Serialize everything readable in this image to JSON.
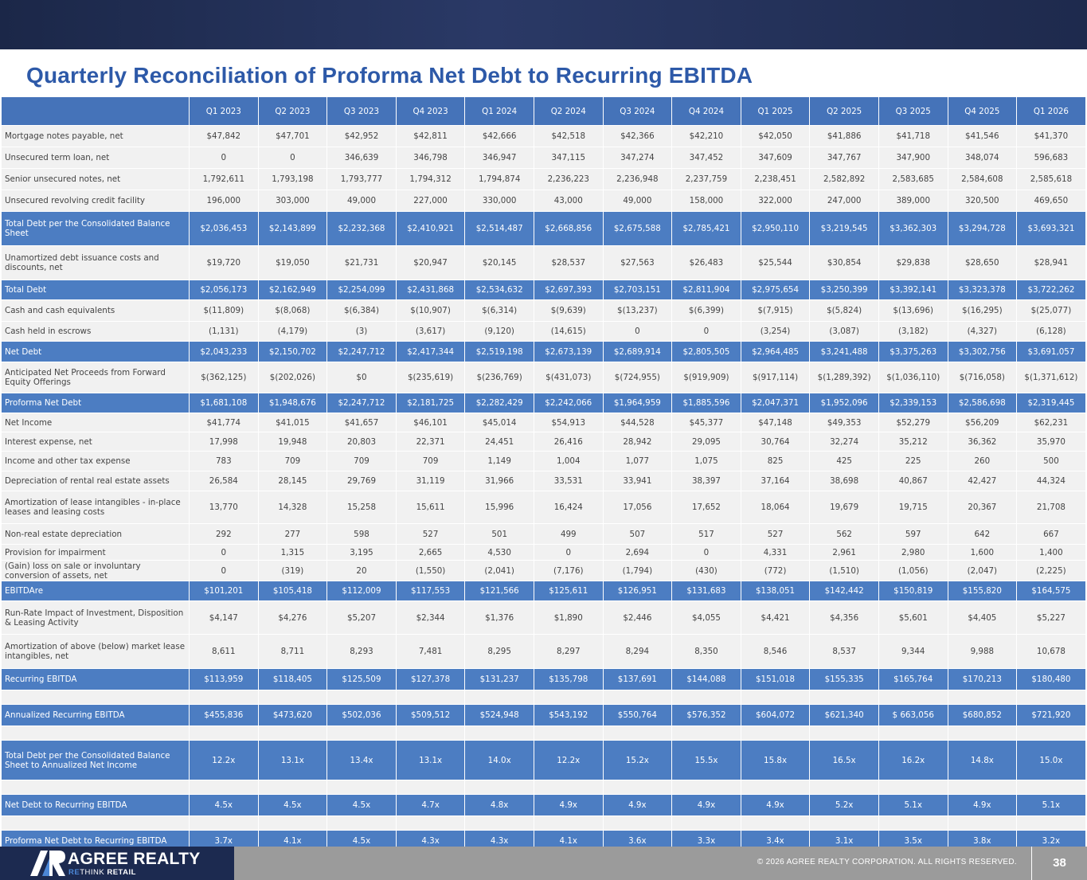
{
  "page": {
    "title": "Quarterly Reconciliation of Proforma Net Debt to Recurring EBITDA"
  },
  "table": {
    "corner_label": "",
    "quarters": [
      "Q1 2023",
      "Q2 2023",
      "Q3 2023",
      "Q4 2023",
      "Q1 2024",
      "Q2 2024",
      "Q3 2024",
      "Q4 2024",
      "Q1 2025",
      "Q2 2025",
      "Q3 2025",
      "Q4 2025",
      "Q1 2026"
    ],
    "rows": [
      {
        "kind": "normal",
        "label": "Mortgage notes payable, net",
        "values": [
          "$47,842",
          "$47,701",
          "$42,952",
          "$42,811",
          "$42,666",
          "$42,518",
          "$42,366",
          "$42,210",
          "$42,050",
          "$41,886",
          "$41,718",
          "$41,546",
          "$41,370"
        ]
      },
      {
        "kind": "normal",
        "label": "Unsecured term loan, net",
        "values": [
          "0",
          "0",
          "346,639",
          "346,798",
          "346,947",
          "347,115",
          "347,274",
          "347,452",
          "347,609",
          "347,767",
          "347,900",
          "348,074",
          "596,683"
        ]
      },
      {
        "kind": "normal",
        "label": "Senior unsecured notes, net",
        "values": [
          "1,792,611",
          "1,793,198",
          "1,793,777",
          "1,794,312",
          "1,794,874",
          "2,236,223",
          "2,236,948",
          "2,237,759",
          "2,238,451",
          "2,582,892",
          "2,583,685",
          "2,584,608",
          "2,585,618"
        ]
      },
      {
        "kind": "normal",
        "label": "Unsecured revolving credit facility",
        "values": [
          "196,000",
          "303,000",
          "49,000",
          "227,000",
          "330,000",
          "43,000",
          "49,000",
          "158,000",
          "322,000",
          "247,000",
          "389,000",
          "320,500",
          "469,650"
        ]
      },
      {
        "kind": "total",
        "label": "Total Debt per the Consolidated Balance Sheet",
        "values": [
          "$2,036,453",
          "$2,143,899",
          "$2,232,368",
          "$2,410,921",
          "$2,514,487",
          "$2,668,856",
          "$2,675,588",
          "$2,785,421",
          "$2,950,110",
          "$3,219,545",
          "$3,362,303",
          "$3,294,728",
          "$3,693,321"
        ]
      },
      {
        "kind": "normal",
        "label": "Unamortized debt issuance costs and discounts, net",
        "values": [
          "$19,720",
          "$19,050",
          "$21,731",
          "$20,947",
          "$20,145",
          "$28,537",
          "$27,563",
          "$26,483",
          "$25,544",
          "$30,854",
          "$29,838",
          "$28,650",
          "$28,941"
        ]
      },
      {
        "kind": "total",
        "label": "Total Debt",
        "values": [
          "$2,056,173",
          "$2,162,949",
          "$2,254,099",
          "$2,431,868",
          "$2,534,632",
          "$2,697,393",
          "$2,703,151",
          "$2,811,904",
          "$2,975,654",
          "$3,250,399",
          "$3,392,141",
          "$3,323,378",
          "$3,722,262"
        ]
      },
      {
        "kind": "normal",
        "label": "Cash and cash equivalents",
        "values": [
          "$(11,809)",
          "$(8,068)",
          "$(6,384)",
          "$(10,907)",
          "$(6,314)",
          "$(9,639)",
          "$(13,237)",
          "$(6,399)",
          "$(7,915)",
          "$(5,824)",
          "$(13,696)",
          "$(16,295)",
          "$(25,077)"
        ]
      },
      {
        "kind": "normal",
        "label": "Cash held in escrows",
        "values": [
          "(1,131)",
          "(4,179)",
          "(3)",
          "(3,617)",
          "(9,120)",
          "(14,615)",
          "0",
          "0",
          "(3,254)",
          "(3,087)",
          "(3,182)",
          "(4,327)",
          "(6,128)"
        ]
      },
      {
        "kind": "total",
        "label": "Net Debt",
        "values": [
          "$2,043,233",
          "$2,150,702",
          "$2,247,712",
          "$2,417,344",
          "$2,519,198",
          "$2,673,139",
          "$2,689,914",
          "$2,805,505",
          "$2,964,485",
          "$3,241,488",
          "$3,375,263",
          "$3,302,756",
          "$3,691,057"
        ]
      },
      {
        "kind": "normal",
        "label": "Anticipated Net Proceeds from Forward Equity Offerings",
        "values": [
          "$(362,125)",
          "$(202,026)",
          "$0",
          "$(235,619)",
          "$(236,769)",
          "$(431,073)",
          "$(724,955)",
          "$(919,909)",
          "$(917,114)",
          "$(1,289,392)",
          "$(1,036,110)",
          "$(716,058)",
          "$(1,371,612)"
        ]
      },
      {
        "kind": "total",
        "label": "Proforma Net Debt",
        "values": [
          "$1,681,108",
          "$1,948,676",
          "$2,247,712",
          "$2,181,725",
          "$2,282,429",
          "$2,242,066",
          "$1,964,959",
          "$1,885,596",
          "$2,047,371",
          "$1,952,096",
          "$2,339,153",
          "$2,586,698",
          "$2,319,445"
        ]
      },
      {
        "kind": "normal",
        "label": "Net Income",
        "values": [
          "$41,774",
          "$41,015",
          "$41,657",
          "$46,101",
          "$45,014",
          "$54,913",
          "$44,528",
          "$45,377",
          "$47,148",
          "$49,353",
          "$52,279",
          "$56,209",
          "$62,231"
        ]
      },
      {
        "kind": "normal",
        "label": "Interest expense, net",
        "values": [
          "17,998",
          "19,948",
          "20,803",
          "22,371",
          "24,451",
          "26,416",
          "28,942",
          "29,095",
          "30,764",
          "32,274",
          "35,212",
          "36,362",
          "35,970"
        ]
      },
      {
        "kind": "normal",
        "label": "Income and other tax expense",
        "values": [
          "783",
          "709",
          "709",
          "709",
          "1,149",
          "1,004",
          "1,077",
          "1,075",
          "825",
          "425",
          "225",
          "260",
          "500"
        ]
      },
      {
        "kind": "normal",
        "label": "Depreciation of rental real estate assets",
        "values": [
          "26,584",
          "28,145",
          "29,769",
          "31,119",
          "31,966",
          "33,531",
          "33,941",
          "38,397",
          "37,164",
          "38,698",
          "40,867",
          "42,427",
          "44,324"
        ]
      },
      {
        "kind": "normal",
        "label": "Amortization of lease intangibles - in-place leases and leasing costs",
        "values": [
          "13,770",
          "14,328",
          "15,258",
          "15,611",
          "15,996",
          "16,424",
          "17,056",
          "17,652",
          "18,064",
          "19,679",
          "19,715",
          "20,367",
          "21,708"
        ]
      },
      {
        "kind": "normal",
        "label": "Non-real estate depreciation",
        "values": [
          "292",
          "277",
          "598",
          "527",
          "501",
          "499",
          "507",
          "517",
          "527",
          "562",
          "597",
          "642",
          "667"
        ]
      },
      {
        "kind": "normal",
        "label": "Provision for impairment",
        "values": [
          "0",
          "1,315",
          "3,195",
          "2,665",
          "4,530",
          "0",
          "2,694",
          "0",
          "4,331",
          "2,961",
          "2,980",
          "1,600",
          "1,400"
        ]
      },
      {
        "kind": "normal",
        "label": "(Gain) loss on sale or involuntary conversion of assets, net",
        "values": [
          "0",
          "(319)",
          "20",
          "(1,550)",
          "(2,041)",
          "(7,176)",
          "(1,794)",
          "(430)",
          "(772)",
          "(1,510)",
          "(1,056)",
          "(2,047)",
          "(2,225)"
        ]
      },
      {
        "kind": "total",
        "label": "EBITDAre",
        "values": [
          "$101,201",
          "$105,418",
          "$112,009",
          "$117,553",
          "$121,566",
          "$125,611",
          "$126,951",
          "$131,683",
          "$138,051",
          "$142,442",
          "$150,819",
          "$155,820",
          "$164,575"
        ]
      },
      {
        "kind": "normal",
        "label": "Run-Rate Impact of Investment, Disposition & Leasing Activity",
        "values": [
          "$4,147",
          "$4,276",
          "$5,207",
          "$2,344",
          "$1,376",
          "$1,890",
          "$2,446",
          "$4,055",
          "$4,421",
          "$4,356",
          "$5,601",
          "$4,405",
          "$5,227"
        ]
      },
      {
        "kind": "normal",
        "label": "Amortization of above (below) market lease intangibles, net",
        "values": [
          "8,611",
          "8,711",
          "8,293",
          "7,481",
          "8,295",
          "8,297",
          "8,294",
          "8,350",
          "8,546",
          "8,537",
          "9,344",
          "9,988",
          "10,678"
        ]
      },
      {
        "kind": "total",
        "label": "Recurring EBITDA",
        "values": [
          "$113,959",
          "$118,405",
          "$125,509",
          "$127,378",
          "$131,237",
          "$135,798",
          "$137,691",
          "$144,088",
          "$151,018",
          "$155,335",
          "$165,764",
          "$170,213",
          "$180,480"
        ]
      },
      {
        "kind": "spacer",
        "label": "",
        "values": [
          "",
          "",
          "",
          "",
          "",
          "",
          "",
          "",
          "",
          "",
          "",
          "",
          ""
        ]
      },
      {
        "kind": "total",
        "label": "Annualized Recurring EBITDA",
        "values": [
          "$455,836",
          "$473,620",
          "$502,036",
          "$509,512",
          "$524,948",
          "$543,192",
          "$550,764",
          "$576,352",
          "$604,072",
          "$621,340",
          "$ 663,056",
          "$680,852",
          "$721,920"
        ]
      },
      {
        "kind": "spacer",
        "label": "",
        "values": [
          "",
          "",
          "",
          "",
          "",
          "",
          "",
          "",
          "",
          "",
          "",
          "",
          ""
        ]
      },
      {
        "kind": "total",
        "label": "Total Debt per the Consolidated Balance Sheet to Annualized Net Income",
        "values": [
          "12.2x",
          "13.1x",
          "13.4x",
          "13.1x",
          "14.0x",
          "12.2x",
          "15.2x",
          "15.5x",
          "15.8x",
          "16.5x",
          "16.2x",
          "14.8x",
          "15.0x"
        ]
      },
      {
        "kind": "spacer",
        "label": "",
        "values": [
          "",
          "",
          "",
          "",
          "",
          "",
          "",
          "",
          "",
          "",
          "",
          "",
          ""
        ]
      },
      {
        "kind": "total",
        "label": "Net Debt to Recurring EBITDA",
        "values": [
          "4.5x",
          "4.5x",
          "4.5x",
          "4.7x",
          "4.8x",
          "4.9x",
          "4.9x",
          "4.9x",
          "4.9x",
          "5.2x",
          "5.1x",
          "4.9x",
          "5.1x"
        ]
      },
      {
        "kind": "spacer",
        "label": "",
        "values": [
          "",
          "",
          "",
          "",
          "",
          "",
          "",
          "",
          "",
          "",
          "",
          "",
          ""
        ]
      },
      {
        "kind": "total",
        "label": "Proforma Net Debt to Recurring EBITDA",
        "values": [
          "3.7x",
          "4.1x",
          "4.5x",
          "4.3x",
          "4.3x",
          "4.1x",
          "3.6x",
          "3.3x",
          "3.4x",
          "3.1x",
          "3.5x",
          "3.8x",
          "3.2x"
        ]
      }
    ]
  },
  "footer": {
    "logo_name": "AGREE REALTY",
    "logo_tag_part1": "RE",
    "logo_tag_part2": "THINK ",
    "logo_tag_part3": "RETAIL",
    "copyright": "© 2026 AGREE REALTY CORPORATION. ALL RIGHTS RESERVED.",
    "page_number": "38"
  },
  "colors": {
    "title": "#2d59a8",
    "header_fill": "#4573b9",
    "total_row_fill": "#4c7dc2",
    "normal_row_fill": "#f1f1f1",
    "footer_gray": "#9b9b9b",
    "logo_navy": "#1c2a50"
  }
}
